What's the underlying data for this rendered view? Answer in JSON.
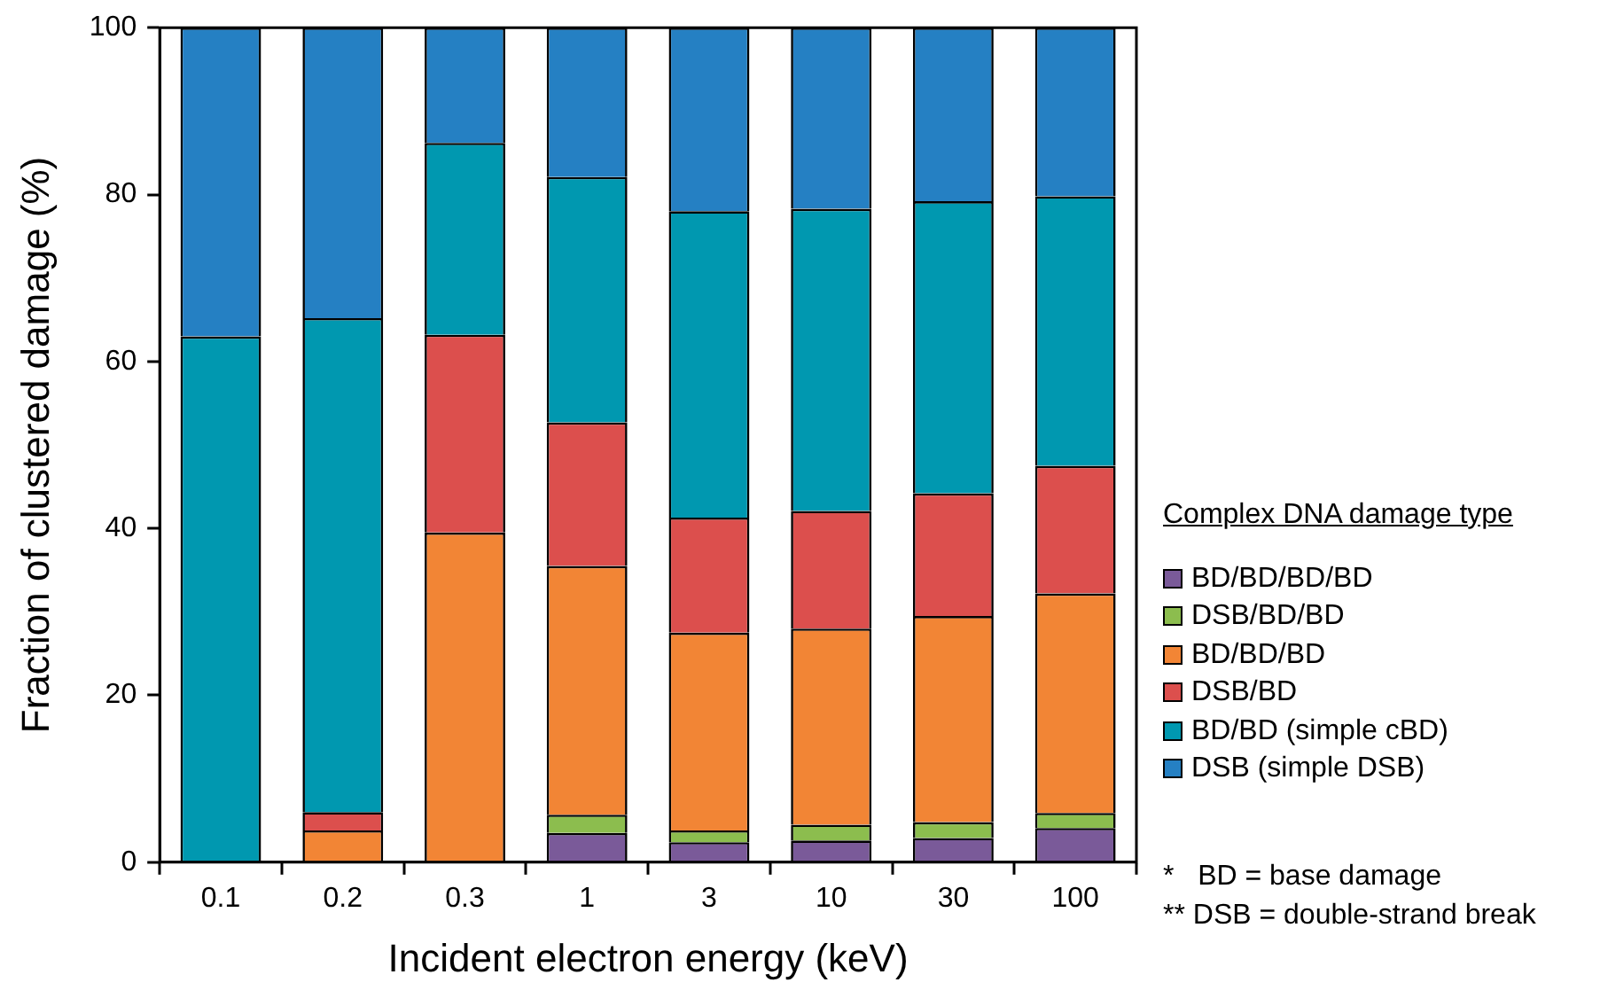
{
  "chart_data": {
    "type": "bar",
    "stacked": true,
    "xlabel": "Incident electron energy (keV)",
    "ylabel": "Fraction of clustered damage (%)",
    "legend_title": "Complex DNA damage type",
    "legend": "right",
    "grid": false,
    "categories": [
      "0.1",
      "0.2",
      "0.3",
      "1",
      "3",
      "10",
      "30",
      "100"
    ],
    "ylim": [
      0,
      100
    ],
    "yticks": [
      0,
      20,
      40,
      60,
      80,
      100
    ],
    "series": [
      {
        "name": "BD/BD/BD/BD",
        "color": "#7a5a99",
        "values": [
          null,
          null,
          null,
          3.5,
          2.4,
          2.6,
          2.9,
          4.1
        ]
      },
      {
        "name": "DSB/BD/BD",
        "color": "#8cbd4e",
        "values": [
          null,
          null,
          null,
          2.2,
          1.4,
          1.9,
          1.9,
          1.8
        ]
      },
      {
        "name": "BD/BD/BD",
        "color": "#f28535",
        "values": [
          null,
          3.8,
          39.5,
          29.8,
          23.7,
          23.5,
          24.7,
          26.3
        ]
      },
      {
        "name": "DSB/BD",
        "color": "#dc4f4d",
        "values": [
          null,
          2.2,
          23.7,
          17.2,
          13.8,
          14.1,
          14.7,
          15.3
        ]
      },
      {
        "name": "BD/BD (simple cBD)",
        "color": "#0098b0",
        "values": [
          63,
          59.2,
          23,
          29.4,
          36.7,
          36.2,
          35,
          32.3
        ]
      },
      {
        "name": "DSB (simple DSB)",
        "color": "#2580c3",
        "values": [
          37,
          34.8,
          13.8,
          17.9,
          22,
          21.7,
          20.8,
          20.2
        ]
      }
    ],
    "annotations": [
      "*   BD = base damage",
      "** DSB = double-strand break"
    ]
  }
}
